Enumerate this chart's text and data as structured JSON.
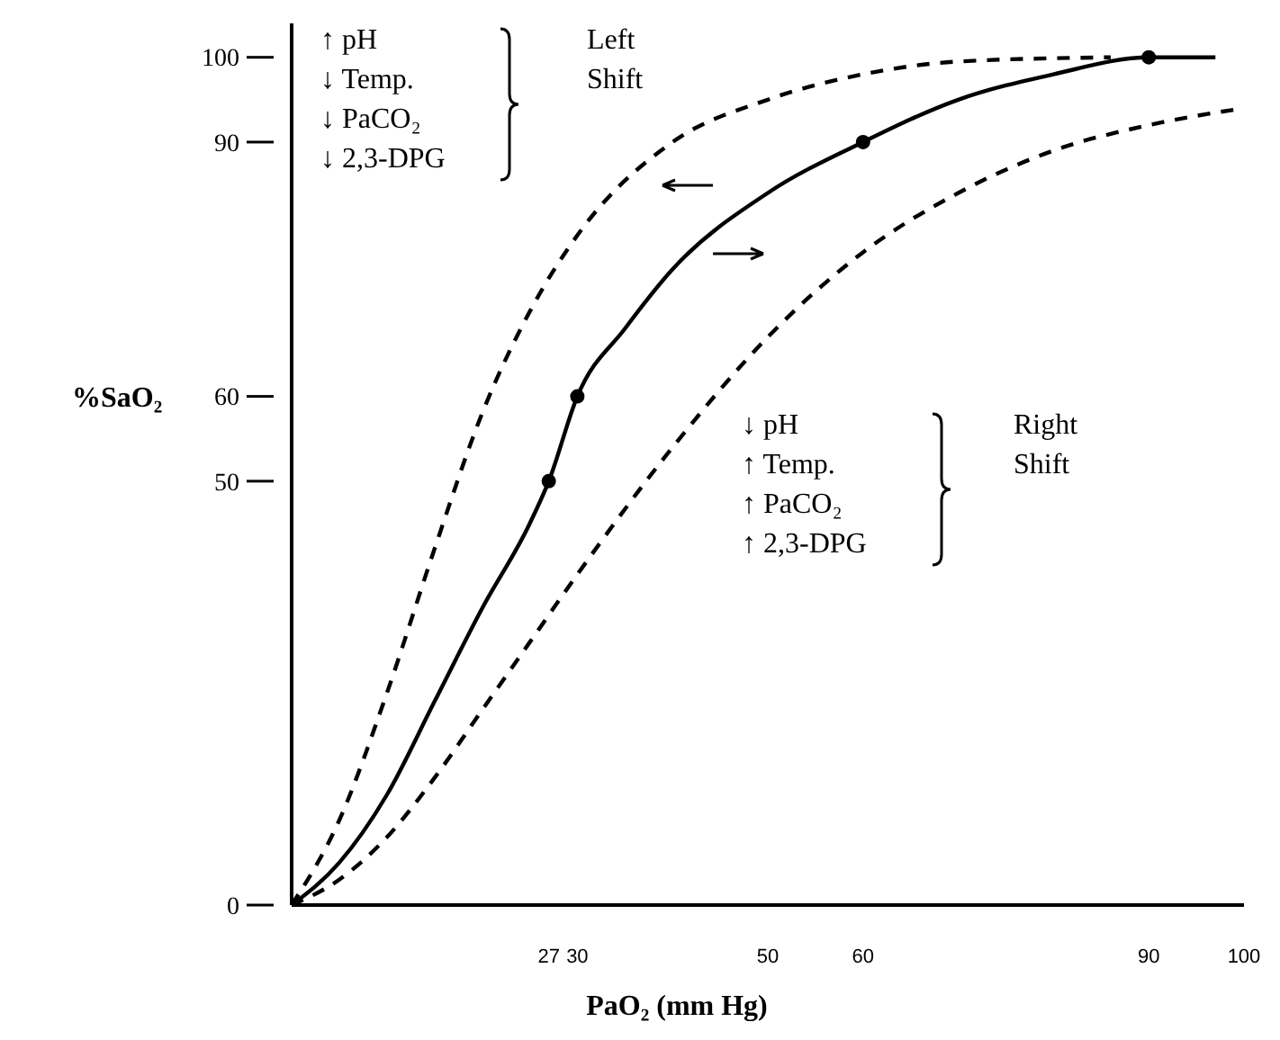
{
  "chart_data": {
    "type": "line",
    "xlabel": "PaO₂ (mm Hg)",
    "ylabel": "%SaO₂",
    "xlim": [
      0,
      100
    ],
    "ylim": [
      0,
      104
    ],
    "xticks": [
      27,
      30,
      50,
      60,
      90,
      100
    ],
    "yticks": [
      0,
      50,
      60,
      90,
      100
    ],
    "series": [
      {
        "color": "#000000",
        "line_style": "solid",
        "marker": "none",
        "x": [
          0,
          5,
          10,
          15,
          20,
          25,
          27,
          30,
          35,
          40,
          50,
          60,
          70,
          80,
          90,
          97
        ],
        "values": [
          0,
          5,
          13,
          24,
          35,
          45,
          50,
          60,
          68,
          75,
          84,
          90,
          95,
          98,
          100,
          100
        ]
      },
      {
        "color": "#000000",
        "line_style": "dashed",
        "marker": "none",
        "x": [
          0,
          5,
          10,
          15,
          20,
          25,
          30,
          40,
          50,
          60,
          70,
          86
        ],
        "values": [
          0,
          10,
          25,
          42,
          58,
          70,
          79,
          90,
          95,
          98,
          99.5,
          100
        ]
      },
      {
        "color": "#000000",
        "line_style": "dashed",
        "marker": "none",
        "x": [
          0,
          5,
          10,
          15,
          20,
          25,
          30,
          40,
          50,
          60,
          70,
          80,
          90,
          100
        ],
        "values": [
          0,
          3,
          8,
          15,
          23,
          31,
          39,
          54,
          67,
          77,
          84,
          89,
          92,
          94
        ]
      },
      {
        "type": "scatter",
        "color": "#000000",
        "marker": "circle",
        "x": [
          27,
          30,
          60,
          90
        ],
        "values": [
          50,
          60,
          90,
          100
        ]
      }
    ],
    "annotations": [
      "↑ pH\n↓ Temp.\n↓ PaCO₂\n↓ 2,3-DPG",
      "Left\nShift",
      "↓ pH\n↑ Temp.\n↑ PaCO₂\n↑ 2,3-DPG",
      "Right\nShift"
    ]
  }
}
